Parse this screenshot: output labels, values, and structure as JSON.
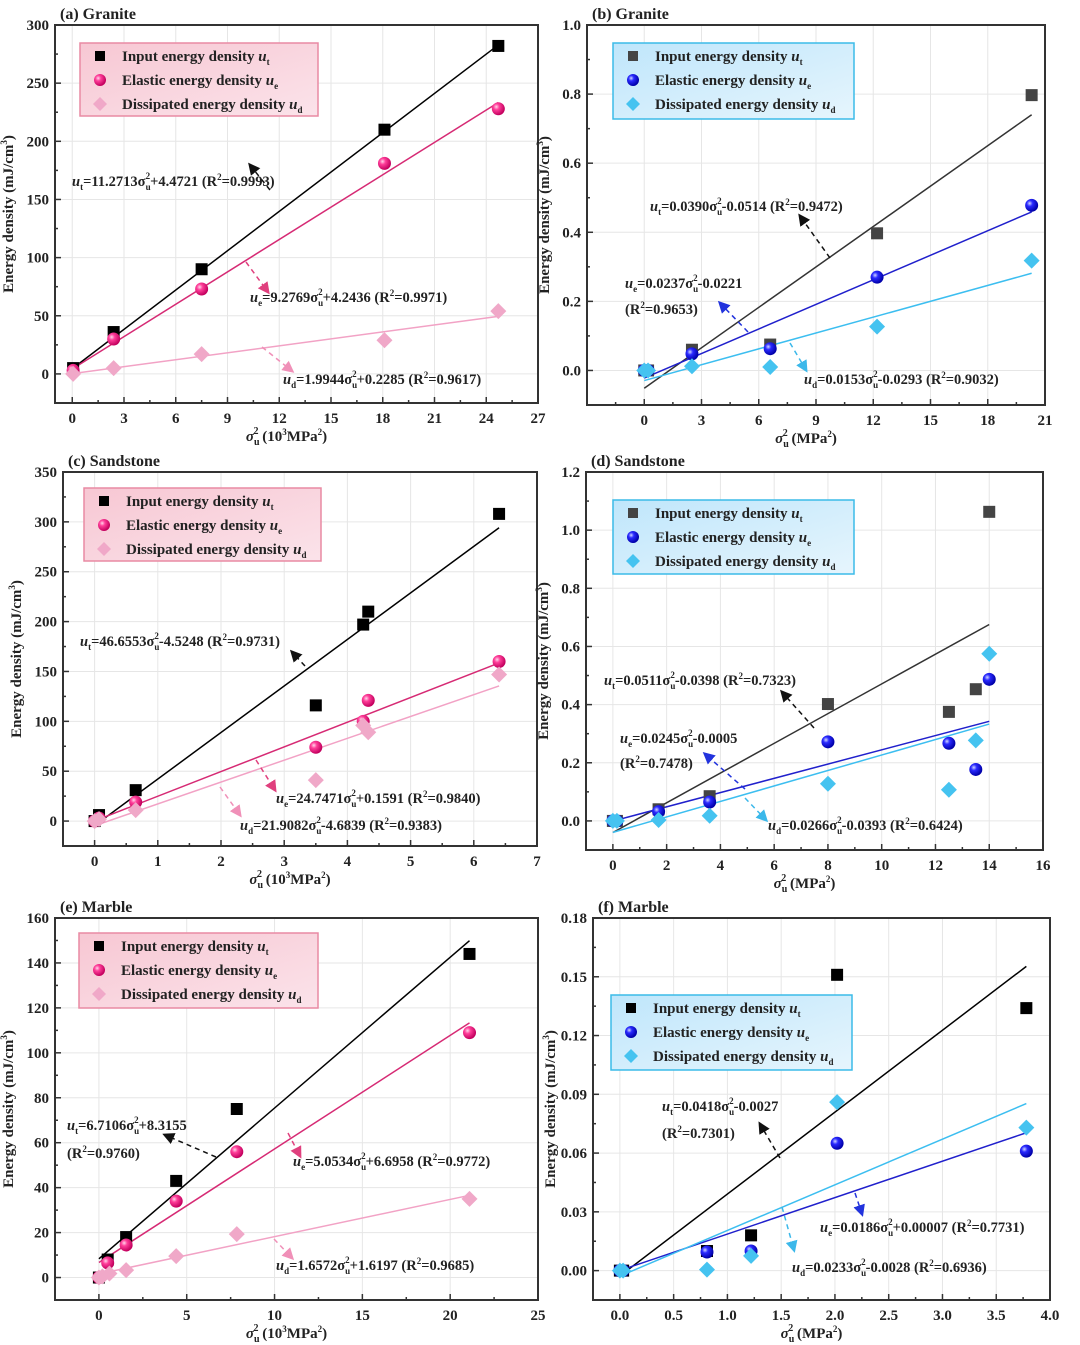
{
  "figure": {
    "panels_count": 6
  },
  "chart_data": [
    {
      "type": "scatter",
      "panel": "a",
      "title": "(a) Granite",
      "xlabel": "σu² (10³MPa²)",
      "ylabel": "Energy density (mJ/cm³)",
      "xlim": [
        -1,
        27
      ],
      "ylim": [
        -25,
        300
      ],
      "xticks": [
        0,
        3,
        6,
        9,
        12,
        15,
        18,
        21,
        24,
        27
      ],
      "yticks": [
        0,
        50,
        100,
        150,
        200,
        250,
        300
      ],
      "grid": true,
      "legend_position": "top-left",
      "legend_style": "pink",
      "series": [
        {
          "name": "Input energy density u_t",
          "label": "Input energy density ",
          "sub": "t",
          "marker": "square",
          "color": "#000000",
          "x": [
            0.05,
            2.4,
            7.5,
            18.1,
            24.7
          ],
          "y": [
            5,
            36,
            90,
            210,
            282
          ],
          "fit": {
            "slope": 11.2713,
            "intercept": 4.4721,
            "r2": 0.9993,
            "xrange": [
              0,
              24.7
            ]
          }
        },
        {
          "name": "Elastic energy density u_e",
          "label": "Elastic energy density ",
          "sub": "e",
          "marker": "sphere",
          "color": "#e6197d",
          "x": [
            0.05,
            2.4,
            7.5,
            18.1,
            24.7
          ],
          "y": [
            3,
            30,
            73,
            181,
            228
          ],
          "fit": {
            "slope": 9.2769,
            "intercept": 4.2436,
            "r2": 0.9971,
            "xrange": [
              0,
              24.7
            ]
          }
        },
        {
          "name": "Dissipated energy density u_d",
          "label": "Dissipated energy density ",
          "sub": "d",
          "marker": "diamond",
          "color": "#f0a8c8",
          "x": [
            0.05,
            2.4,
            7.5,
            18.1,
            24.7
          ],
          "y": [
            0,
            5,
            17,
            29,
            54
          ],
          "fit": {
            "slope": 1.9944,
            "intercept": 0.2285,
            "r2": 0.9617,
            "xrange": [
              0,
              24.7
            ]
          }
        }
      ],
      "annotations": [
        {
          "pre": "u",
          "sub": "t",
          "mid": "=11.2713σ",
          "tail": "+4.4721 (R²=0.9993)",
          "series": 0
        },
        {
          "pre": "u",
          "sub": "e",
          "mid": "=9.2769σ",
          "tail": "+4.2436 (R²=0.9971)",
          "series": 1
        },
        {
          "pre": "u",
          "sub": "d",
          "mid": "=1.9944σ",
          "tail": "+0.2285 (R²=0.9617)",
          "series": 2
        }
      ]
    },
    {
      "type": "scatter",
      "panel": "b",
      "title": "(b) Granite",
      "xlabel": "σu² (MPa²)",
      "ylabel": "Energy density (mJ/cm³)",
      "xlim": [
        -3,
        21
      ],
      "ylim": [
        -0.1,
        1.0
      ],
      "xticks": [
        0,
        3,
        6,
        9,
        12,
        15,
        18,
        21
      ],
      "yticks": [
        0.0,
        0.2,
        0.4,
        0.6,
        0.8,
        1.0
      ],
      "grid": true,
      "legend_position": "top-left",
      "legend_style": "blue",
      "series": [
        {
          "name": "Input energy density u_t",
          "label": "Input energy density ",
          "sub": "t",
          "marker": "square",
          "color": "#444444",
          "x": [
            0.0,
            0.2,
            2.5,
            6.6,
            12.2,
            20.3
          ],
          "y": [
            0.0,
            0.0,
            0.06,
            0.075,
            0.397,
            0.797
          ],
          "fit": {
            "slope": 0.039,
            "intercept": -0.0514,
            "r2": 0.9472,
            "xrange": [
              0,
              20.3
            ]
          }
        },
        {
          "name": "Elastic energy density u_e",
          "label": "Elastic energy density ",
          "sub": "e",
          "marker": "sphere",
          "color": "#1a1adb",
          "x": [
            0.0,
            0.2,
            2.5,
            6.6,
            12.2,
            20.3
          ],
          "y": [
            0.0,
            0.0,
            0.048,
            0.063,
            0.27,
            0.478
          ],
          "fit": {
            "slope": 0.0237,
            "intercept": -0.0221,
            "r2": 0.9653,
            "xrange": [
              0,
              20.3
            ]
          }
        },
        {
          "name": "Dissipated energy density u_d",
          "label": "Dissipated energy density ",
          "sub": "d",
          "marker": "diamond",
          "color": "#45c3f0",
          "x": [
            0.0,
            0.2,
            2.5,
            6.6,
            12.2,
            20.3
          ],
          "y": [
            0.0,
            0.0,
            0.012,
            0.01,
            0.127,
            0.318
          ],
          "fit": {
            "slope": 0.0153,
            "intercept": -0.0293,
            "r2": 0.9032,
            "xrange": [
              0,
              20.3
            ]
          }
        }
      ],
      "annotations": [
        {
          "pre": "u",
          "sub": "t",
          "mid": "=0.0390σ",
          "tail": "-0.0514 (R²=0.9472)",
          "series": 0
        },
        {
          "pre": "u",
          "sub": "e",
          "mid": "=0.0237σ",
          "tail": "-0.0221",
          "tail2": "(R²=0.9653)",
          "series": 1
        },
        {
          "pre": "u",
          "sub": "d",
          "mid": "=0.0153σ",
          "tail": "-0.0293 (R²=0.9032)",
          "series": 2
        }
      ]
    },
    {
      "type": "scatter",
      "panel": "c",
      "title": "(c) Sandstone",
      "xlabel": "σu² (10³MPa²)",
      "ylabel": "Energy density (mJ/cm³)",
      "xlim": [
        -0.5,
        7
      ],
      "ylim": [
        -25,
        350
      ],
      "xticks": [
        0,
        1,
        2,
        3,
        4,
        5,
        6,
        7
      ],
      "yticks": [
        0,
        50,
        100,
        150,
        200,
        250,
        300,
        350
      ],
      "grid": true,
      "legend_position": "top-left",
      "legend_style": "pink",
      "series": [
        {
          "name": "Input energy density u_t",
          "label": "Input energy density ",
          "sub": "t",
          "marker": "square",
          "color": "#000000",
          "x": [
            0.0,
            0.07,
            0.65,
            3.5,
            4.25,
            4.33,
            6.4
          ],
          "y": [
            0,
            6,
            31,
            116,
            197,
            210,
            308
          ],
          "fit": {
            "slope": 46.6553,
            "intercept": -4.5248,
            "r2": 0.9731,
            "xrange": [
              0,
              6.4
            ]
          }
        },
        {
          "name": "Elastic energy density u_e",
          "label": "Elastic energy density ",
          "sub": "e",
          "marker": "sphere",
          "color": "#e6197d",
          "x": [
            0.0,
            0.07,
            0.65,
            3.5,
            4.25,
            4.33,
            6.4
          ],
          "y": [
            0,
            3,
            19,
            74,
            100,
            121,
            160
          ],
          "fit": {
            "slope": 24.7471,
            "intercept": 0.1591,
            "r2": 0.984,
            "xrange": [
              0,
              6.4
            ]
          }
        },
        {
          "name": "Dissipated energy density u_d",
          "label": "Dissipated energy density ",
          "sub": "d",
          "marker": "diamond",
          "color": "#f0a8c8",
          "x": [
            0.0,
            0.07,
            0.65,
            3.5,
            4.25,
            4.33,
            6.4
          ],
          "y": [
            0,
            2,
            11,
            41,
            96,
            89,
            147
          ],
          "fit": {
            "slope": 21.9082,
            "intercept": -4.6839,
            "r2": 0.9383,
            "xrange": [
              0,
              6.4
            ]
          }
        }
      ],
      "annotations": [
        {
          "pre": "u",
          "sub": "t",
          "mid": "=46.6553σ",
          "tail": "-4.5248 (R²=0.9731)",
          "series": 0
        },
        {
          "pre": "u",
          "sub": "e",
          "mid": "=24.7471σ",
          "tail": "+0.1591 (R²=0.9840)",
          "series": 1
        },
        {
          "pre": "u",
          "sub": "d",
          "mid": "=21.9082σ",
          "tail": "-4.6839 (R²=0.9383)",
          "series": 2
        }
      ]
    },
    {
      "type": "scatter",
      "panel": "d",
      "title": "(d) Sandstone",
      "xlabel": "σu² (MPa²)",
      "ylabel": "Energy density (mJ/cm³)",
      "xlim": [
        -1,
        16
      ],
      "ylim": [
        -0.1,
        1.2
      ],
      "xticks": [
        0,
        2,
        4,
        6,
        8,
        10,
        12,
        14,
        16
      ],
      "yticks": [
        0.0,
        0.2,
        0.4,
        0.6,
        0.8,
        1.0,
        1.2
      ],
      "grid": true,
      "legend_position": "top-left",
      "legend_style": "blue",
      "series": [
        {
          "name": "Input energy density u_t",
          "label": "Input energy density ",
          "sub": "t",
          "marker": "square",
          "color": "#444444",
          "x": [
            0.0,
            0.15,
            1.7,
            3.6,
            8.0,
            12.5,
            13.5,
            14.0
          ],
          "y": [
            0.0,
            0.0,
            0.04,
            0.085,
            0.402,
            0.375,
            0.453,
            1.063
          ],
          "fit": {
            "slope": 0.0511,
            "intercept": -0.0398,
            "r2": 0.7323,
            "xrange": [
              0,
              14.0
            ]
          }
        },
        {
          "name": "Elastic energy density u_e",
          "label": "Elastic energy density ",
          "sub": "e",
          "marker": "sphere",
          "color": "#1a1adb",
          "x": [
            0.0,
            0.15,
            1.7,
            3.6,
            8.0,
            12.5,
            13.5,
            14.0
          ],
          "y": [
            0.0,
            0.0,
            0.032,
            0.065,
            0.272,
            0.267,
            0.177,
            0.487
          ],
          "fit": {
            "slope": 0.0245,
            "intercept": -0.0005,
            "r2": 0.7478,
            "xrange": [
              0,
              14.0
            ]
          }
        },
        {
          "name": "Dissipated energy density u_d",
          "label": "Dissipated energy density ",
          "sub": "d",
          "marker": "diamond",
          "color": "#45c3f0",
          "x": [
            0.0,
            0.15,
            1.7,
            3.6,
            8.0,
            12.5,
            13.5,
            14.0
          ],
          "y": [
            0.0,
            0.0,
            0.003,
            0.018,
            0.128,
            0.107,
            0.277,
            0.575
          ],
          "fit": {
            "slope": 0.0266,
            "intercept": -0.0393,
            "r2": 0.6424,
            "xrange": [
              0,
              14.0
            ]
          }
        }
      ],
      "annotations": [
        {
          "pre": "u",
          "sub": "t",
          "mid": "=0.0511σ",
          "tail": "-0.0398 (R²=0.7323)",
          "series": 0
        },
        {
          "pre": "u",
          "sub": "e",
          "mid": "=0.0245σ",
          "tail": "-0.0005",
          "tail2": "(R²=0.7478)",
          "series": 1
        },
        {
          "pre": "u",
          "sub": "d",
          "mid": "=0.0266σ",
          "tail": "-0.0393 (R²=0.6424)",
          "series": 2
        }
      ]
    },
    {
      "type": "scatter",
      "panel": "e",
      "title": "(e) Marble",
      "xlabel": "σu² (10³MPa²)",
      "ylabel": "Energy density (mJ/cm³)",
      "xlim": [
        -2.5,
        25
      ],
      "ylim": [
        -10,
        160
      ],
      "xticks": [
        0,
        5,
        10,
        15,
        20,
        25
      ],
      "yticks": [
        0,
        20,
        40,
        60,
        80,
        100,
        120,
        140,
        160
      ],
      "grid": true,
      "legend_position": "top-left",
      "legend_style": "pink",
      "series": [
        {
          "name": "Input energy density u_t",
          "label": "Input energy density ",
          "sub": "t",
          "marker": "square",
          "color": "#000000",
          "x": [
            0.0,
            0.5,
            1.55,
            4.4,
            7.85,
            21.1
          ],
          "y": [
            0,
            8,
            18,
            43,
            75,
            144
          ],
          "fit": {
            "slope": 6.7106,
            "intercept": 8.3155,
            "r2": 0.976,
            "xrange": [
              0,
              21.1
            ]
          }
        },
        {
          "name": "Elastic energy density u_e",
          "label": "Elastic energy density ",
          "sub": "e",
          "marker": "sphere",
          "color": "#e6197d",
          "x": [
            0.0,
            0.5,
            1.55,
            4.4,
            7.85,
            21.1
          ],
          "y": [
            0,
            6.5,
            14.5,
            34,
            56,
            109
          ],
          "fit": {
            "slope": 5.0534,
            "intercept": 6.6958,
            "r2": 0.9772,
            "xrange": [
              0,
              21.1
            ]
          }
        },
        {
          "name": "Dissipated energy density u_d",
          "label": "Dissipated energy density ",
          "sub": "d",
          "marker": "diamond",
          "color": "#f0a8c8",
          "x": [
            0.0,
            0.2,
            0.6,
            1.55,
            4.4,
            7.85,
            21.1
          ],
          "y": [
            0,
            0.5,
            1.8,
            3.3,
            9.5,
            19.3,
            35
          ],
          "fit": {
            "slope": 1.6572,
            "intercept": 1.6197,
            "r2": 0.9685,
            "xrange": [
              0,
              21.1
            ]
          }
        }
      ],
      "annotations": [
        {
          "pre": "u",
          "sub": "t",
          "mid": "=6.7106σ",
          "tail": "+8.3155",
          "tail2": "(R²=0.9760)",
          "series": 0
        },
        {
          "pre": "u",
          "sub": "e",
          "mid": "=5.0534σ",
          "tail": "+6.6958 (R²=0.9772)",
          "series": 1
        },
        {
          "pre": "u",
          "sub": "d",
          "mid": "=1.6572σ",
          "tail": "+1.6197 (R²=0.9685)",
          "series": 2
        }
      ]
    },
    {
      "type": "scatter",
      "panel": "f",
      "title": "(f) Marble",
      "xlabel": "σu² (MPa²)",
      "ylabel": "Energy density (mJ/cm³)",
      "xlim": [
        -0.25,
        4.0
      ],
      "ylim": [
        -0.015,
        0.18
      ],
      "xticks": [
        0.0,
        0.5,
        1.0,
        1.5,
        2.0,
        2.5,
        3.0,
        3.5,
        4.0
      ],
      "yticks": [
        0.0,
        0.03,
        0.06,
        0.09,
        0.12,
        0.15,
        0.18
      ],
      "grid": true,
      "legend_position": "center-left",
      "legend_style": "blue",
      "series": [
        {
          "name": "Input energy density u_t",
          "label": "Input energy density ",
          "sub": "t",
          "marker": "square",
          "color": "#000000",
          "x": [
            0.0,
            0.03,
            0.81,
            1.22,
            2.02,
            3.78
          ],
          "y": [
            0.0,
            0.0,
            0.01,
            0.018,
            0.151,
            0.134
          ],
          "fit": {
            "slope": 0.0418,
            "intercept": -0.0027,
            "r2": 0.7301,
            "xrange": [
              0,
              3.78
            ]
          }
        },
        {
          "name": "Elastic energy density u_e",
          "label": "Elastic energy density ",
          "sub": "e",
          "marker": "sphere",
          "color": "#1a1adb",
          "x": [
            0.0,
            0.03,
            0.81,
            1.22,
            2.02,
            3.78
          ],
          "y": [
            0.0,
            0.0,
            0.0095,
            0.01,
            0.065,
            0.061
          ],
          "fit": {
            "slope": 0.0186,
            "intercept": 7e-05,
            "r2": 0.7731,
            "xrange": [
              0,
              3.78
            ]
          }
        },
        {
          "name": "Dissipated energy density u_d",
          "label": "Dissipated energy density ",
          "sub": "d",
          "marker": "diamond",
          "color": "#45c3f0",
          "x": [
            0.0,
            0.03,
            0.81,
            1.22,
            2.02,
            3.78
          ],
          "y": [
            0.0,
            0.0,
            0.0005,
            0.0075,
            0.086,
            0.073
          ],
          "fit": {
            "slope": 0.0233,
            "intercept": -0.0028,
            "r2": 0.6936,
            "xrange": [
              0,
              3.78
            ]
          }
        }
      ],
      "annotations": [
        {
          "pre": "u",
          "sub": "t",
          "mid": "=0.0418σ",
          "tail": "-0.0027",
          "tail2": "(R²=0.7301)",
          "series": 0
        },
        {
          "pre": "u",
          "sub": "e",
          "mid": "=0.0186σ",
          "tail": "+0.00007 (R²=0.7731)",
          "series": 1
        },
        {
          "pre": "u",
          "sub": "d",
          "mid": "=0.0233σ",
          "tail": "-0.0028 (R²=0.6936)",
          "series": 2
        }
      ]
    }
  ]
}
